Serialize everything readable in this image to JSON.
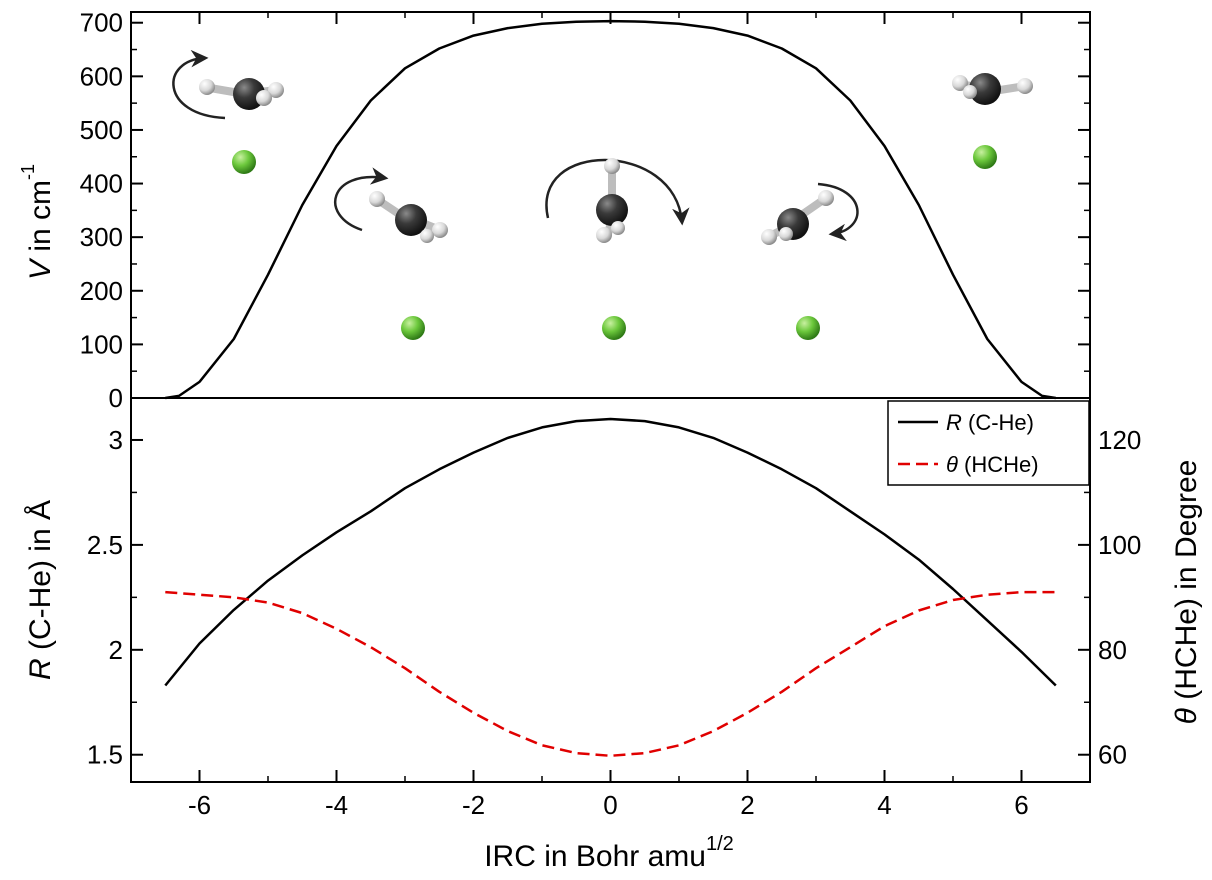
{
  "chart_data": [
    {
      "panel": "top",
      "type": "line",
      "title": "",
      "xlabel": "IRC in Bohr amu^1/2",
      "ylabel": {
        "symbol": "V",
        "text": " in cm",
        "sup": "-1"
      },
      "xlim": [
        -7,
        7
      ],
      "ylim": [
        0,
        720
      ],
      "yticks": [
        0,
        100,
        200,
        300,
        400,
        500,
        600,
        700
      ],
      "grid": false,
      "series": [
        {
          "color": "#000000",
          "style": "solid",
          "x": [
            -6.5,
            -6.3,
            -6.0,
            -5.5,
            -5.0,
            -4.5,
            -4.0,
            -3.5,
            -3.0,
            -2.5,
            -2.0,
            -1.5,
            -1.0,
            -0.5,
            0.0,
            0.5,
            1.0,
            1.5,
            2.0,
            2.5,
            3.0,
            3.5,
            4.0,
            4.5,
            5.0,
            5.5,
            6.0,
            6.3,
            6.5
          ],
          "y": [
            0,
            4,
            30,
            110,
            230,
            360,
            470,
            555,
            615,
            652,
            676,
            690,
            698,
            702,
            703,
            702,
            698,
            690,
            676,
            652,
            615,
            555,
            470,
            360,
            230,
            110,
            30,
            4,
            0
          ]
        }
      ],
      "annotations": [
        {
          "kind": "molecule",
          "x": -5.5,
          "y": 600,
          "label": "CH2 with rotation arrow"
        },
        {
          "kind": "molecule",
          "x": -3.0,
          "y": 350,
          "label": "CH2 with rotation arrow"
        },
        {
          "kind": "molecule",
          "x": 0.0,
          "y": 360,
          "label": "CH2 with rotation arrow"
        },
        {
          "kind": "molecule",
          "x": 2.8,
          "y": 340,
          "label": "CH2 with rotation arrow"
        },
        {
          "kind": "molecule",
          "x": 5.5,
          "y": 620,
          "label": "CH2"
        },
        {
          "kind": "he-atom",
          "x": -5.35,
          "y": 465
        },
        {
          "kind": "he-atom",
          "x": -3.05,
          "y": 140
        },
        {
          "kind": "he-atom",
          "x": 0.05,
          "y": 140
        },
        {
          "kind": "he-atom",
          "x": 3.05,
          "y": 140
        },
        {
          "kind": "he-atom",
          "x": 5.4,
          "y": 475
        }
      ]
    },
    {
      "panel": "bottom",
      "type": "line",
      "xlabel": "IRC in Bohr amu^1/2",
      "xlim": [
        -7,
        7
      ],
      "xticks": [
        -6,
        -4,
        -2,
        0,
        2,
        4,
        6
      ],
      "ylabel": {
        "symbol": "R",
        "text": " (C-He) in Å"
      },
      "ylim": [
        1.37,
        3.2
      ],
      "yticks": [
        1.5,
        2,
        2.5,
        3
      ],
      "ytick_labels": [
        "1.5",
        "2",
        "2.5",
        "3"
      ],
      "y2label": {
        "symbol": "θ",
        "text": " (HCHe) in Degree"
      },
      "y2lim": [
        54.8,
        128
      ],
      "y2ticks": [
        60,
        80,
        100,
        120
      ],
      "legend": {
        "placement": "top-right",
        "entries": [
          {
            "symbol": "R",
            "text": " (C-He)",
            "color": "#000000",
            "style": "solid"
          },
          {
            "symbol": "θ",
            "text": " (HCHe)",
            "color": "#e00000",
            "style": "dashed"
          }
        ]
      },
      "grid": false,
      "series": [
        {
          "axis": "left",
          "color": "#000000",
          "style": "solid",
          "x": [
            -6.5,
            -6.0,
            -5.5,
            -5.0,
            -4.5,
            -4.0,
            -3.5,
            -3.0,
            -2.5,
            -2.0,
            -1.5,
            -1.0,
            -0.5,
            0.0,
            0.5,
            1.0,
            1.5,
            2.0,
            2.5,
            3.0,
            3.5,
            4.0,
            4.5,
            5.0,
            5.5,
            6.0,
            6.5
          ],
          "y": [
            1.83,
            2.03,
            2.19,
            2.33,
            2.45,
            2.56,
            2.66,
            2.77,
            2.86,
            2.94,
            3.01,
            3.06,
            3.09,
            3.1,
            3.09,
            3.06,
            3.01,
            2.94,
            2.86,
            2.77,
            2.66,
            2.55,
            2.43,
            2.29,
            2.14,
            1.99,
            1.83
          ]
        },
        {
          "axis": "right",
          "color": "#e00000",
          "style": "dashed",
          "x": [
            -6.5,
            -6.0,
            -5.5,
            -5.0,
            -4.5,
            -4.0,
            -3.5,
            -3.0,
            -2.5,
            -2.0,
            -1.5,
            -1.0,
            -0.5,
            0.0,
            0.5,
            1.0,
            1.5,
            2.0,
            2.5,
            3.0,
            3.5,
            4.0,
            4.5,
            5.0,
            5.5,
            6.0,
            6.5
          ],
          "y": [
            91,
            90.5,
            90,
            89,
            87,
            84,
            80.5,
            76.5,
            72,
            68,
            64.5,
            61.8,
            60.3,
            59.8,
            60.3,
            61.8,
            64.5,
            68,
            72,
            76.5,
            80.5,
            84.5,
            87.5,
            89.5,
            90.5,
            91,
            91
          ]
        }
      ]
    }
  ]
}
